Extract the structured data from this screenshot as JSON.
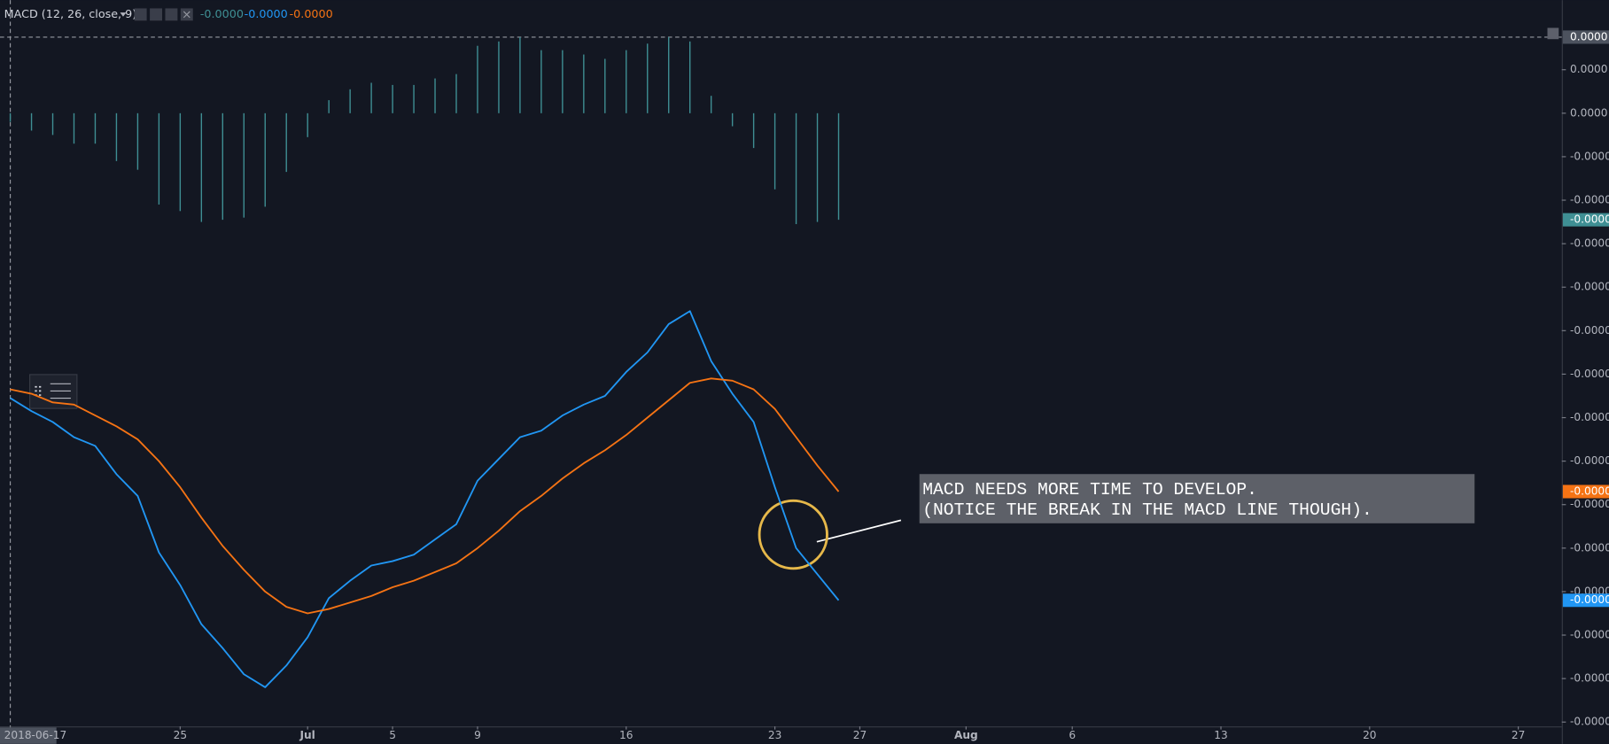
{
  "header": {
    "indicator": "MACD (12, 26, close, 9)"
  },
  "chart_data": {
    "type": "line",
    "x": [
      "2018-06-17",
      "2018-06-18",
      "2018-06-19",
      "2018-06-20",
      "2018-06-21",
      "2018-06-22",
      "2018-06-23",
      "2018-06-24",
      "2018-06-25",
      "2018-06-26",
      "2018-06-27",
      "2018-06-28",
      "2018-06-29",
      "2018-06-30",
      "2018-07-01",
      "2018-07-02",
      "2018-07-03",
      "2018-07-04",
      "2018-07-05",
      "2018-07-06",
      "2018-07-07",
      "2018-07-08",
      "2018-07-09",
      "2018-07-10",
      "2018-07-11",
      "2018-07-12",
      "2018-07-13",
      "2018-07-14",
      "2018-07-15",
      "2018-07-16",
      "2018-07-17",
      "2018-07-18",
      "2018-07-19",
      "2018-07-20",
      "2018-07-21",
      "2018-07-22",
      "2018-07-23",
      "2018-07-24",
      "2018-07-25",
      "2018-07-26"
    ],
    "xlim": [
      "2018-06-17",
      "2018-08-29"
    ],
    "xticks": [
      "2018-06-17",
      {
        "value": "2018-06-25",
        "label": "25"
      },
      {
        "value": "2018-07-01",
        "label": "Jul"
      },
      {
        "value": "2018-07-05",
        "label": "5"
      },
      {
        "value": "2018-07-09",
        "label": "9"
      },
      {
        "value": "2018-07-16",
        "label": "16"
      },
      {
        "value": "2018-07-23",
        "label": "23"
      },
      {
        "value": "2018-07-27",
        "label": "27"
      },
      {
        "value": "2018-08-01",
        "label": "Aug"
      },
      {
        "value": "2018-08-06",
        "label": "6"
      },
      {
        "value": "2018-08-13",
        "label": "13"
      },
      {
        "value": "2018-08-20",
        "label": "20"
      },
      {
        "value": "2018-08-27",
        "label": "27"
      }
    ],
    "ylim": [
      -2.82e-05,
      5.2e-06
    ],
    "yticks": [
      {
        "value": 2e-06,
        "label": "0.0000"
      },
      {
        "value": 0,
        "label": "0.0000"
      },
      {
        "value": -2e-06,
        "label": "-0.0000"
      },
      {
        "value": -4e-06,
        "label": "-0.0000"
      },
      {
        "value": -6e-06,
        "label": "-0.0000"
      },
      {
        "value": -8e-06,
        "label": "-0.0000"
      },
      {
        "value": -1e-05,
        "label": "-0.0000"
      },
      {
        "value": -1.2e-05,
        "label": "-0.0000"
      },
      {
        "value": -1.4e-05,
        "label": "-0.0000"
      },
      {
        "value": -1.6e-05,
        "label": "-0.0000"
      },
      {
        "value": -1.8e-05,
        "label": "-0.0000"
      },
      {
        "value": -2e-05,
        "label": "-0.0000"
      },
      {
        "value": -2.2e-05,
        "label": "-0.0000"
      },
      {
        "value": -2.4e-05,
        "label": "-0.0000"
      },
      {
        "value": -2.6e-05,
        "label": "-0.0000"
      },
      {
        "value": -2.8e-05,
        "label": "-0.0000"
      }
    ],
    "crosshair": {
      "value": 3.5e-06,
      "label": "0.0000"
    },
    "series": [
      {
        "type": "bar",
        "color": "#3f8f94",
        "legend_value": "-0.0000",
        "last_label": "-0.0000",
        "values": [
          -4e-07,
          -8e-07,
          -1e-06,
          -1.4e-06,
          -1.4e-06,
          -2.2e-06,
          -2.6e-06,
          -4.2e-06,
          -4.5e-06,
          -5e-06,
          -4.9e-06,
          -4.8e-06,
          -4.3e-06,
          -2.7e-06,
          -1.1e-06,
          6e-07,
          1.1e-06,
          1.4e-06,
          1.3e-06,
          1.3e-06,
          1.6e-06,
          1.8e-06,
          3.1e-06,
          3.3e-06,
          3.5e-06,
          2.9e-06,
          2.9e-06,
          2.7e-06,
          2.5e-06,
          2.9e-06,
          3.2e-06,
          3.5e-06,
          3.3e-06,
          8e-07,
          -6e-07,
          -1.6e-06,
          -3.5e-06,
          -5.1e-06,
          -5e-06,
          -4.9e-06
        ]
      },
      {
        "type": "line",
        "color": "#2196f3",
        "legend_value": "-0.0000",
        "last_label": "-0.0000",
        "values": [
          -1.31e-05,
          -1.37e-05,
          -1.42e-05,
          -1.49e-05,
          -1.53e-05,
          -1.66e-05,
          -1.76e-05,
          -2.02e-05,
          -2.17e-05,
          -2.35e-05,
          -2.46e-05,
          -2.58e-05,
          -2.64e-05,
          -2.54e-05,
          -2.41e-05,
          -2.23e-05,
          -2.15e-05,
          -2.08e-05,
          -2.06e-05,
          -2.03e-05,
          -1.96e-05,
          -1.89e-05,
          -1.69e-05,
          -1.59e-05,
          -1.49e-05,
          -1.46e-05,
          -1.39e-05,
          -1.34e-05,
          -1.3e-05,
          -1.19e-05,
          -1.1e-05,
          -9.7e-06,
          -9.1e-06,
          -1.14e-05,
          -1.29e-05,
          -1.42e-05,
          -1.72e-05,
          -2e-05,
          -2.12e-05,
          -2.24e-05
        ]
      },
      {
        "type": "line",
        "color": "#f57314",
        "legend_value": "-0.0000",
        "last_label": "-0.0000",
        "values": [
          -1.27e-05,
          -1.29e-05,
          -1.33e-05,
          -1.34e-05,
          -1.39e-05,
          -1.44e-05,
          -1.5e-05,
          -1.6e-05,
          -1.72e-05,
          -1.86e-05,
          -1.99e-05,
          -2.1e-05,
          -2.2e-05,
          -2.27e-05,
          -2.3e-05,
          -2.28e-05,
          -2.25e-05,
          -2.22e-05,
          -2.18e-05,
          -2.15e-05,
          -2.11e-05,
          -2.07e-05,
          -2e-05,
          -1.92e-05,
          -1.83e-05,
          -1.76e-05,
          -1.68e-05,
          -1.61e-05,
          -1.55e-05,
          -1.48e-05,
          -1.4e-05,
          -1.32e-05,
          -1.24e-05,
          -1.22e-05,
          -1.23e-05,
          -1.27e-05,
          -1.36e-05,
          -1.49e-05,
          -1.62e-05,
          -1.74e-05
        ]
      }
    ]
  },
  "annotation": {
    "lines": [
      "MACD NEEDS MORE TIME TO DEVELOP.",
      "(NOTICE THE BREAK IN THE MACD LINE THOUGH)."
    ]
  }
}
